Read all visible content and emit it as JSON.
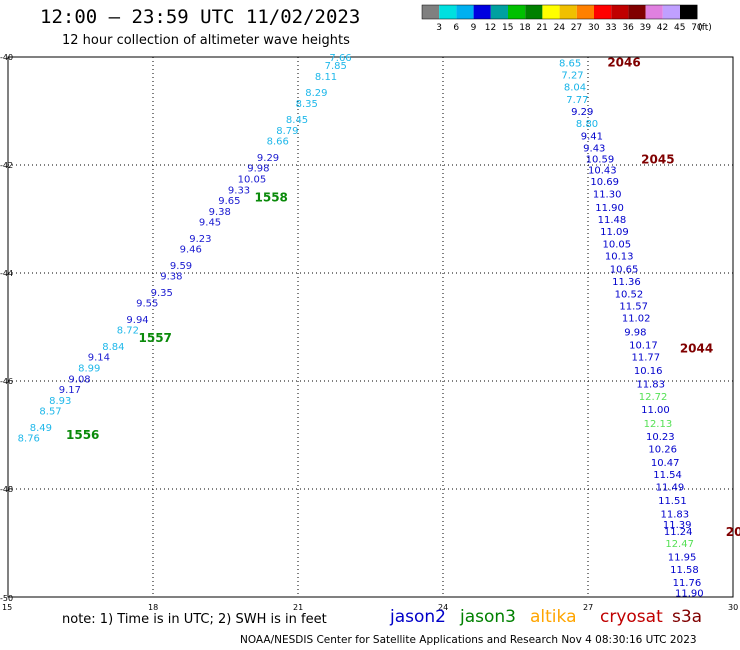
{
  "header": {
    "title": "12:00 – 23:59 UTC 11/02/2023",
    "subtitle": "12 hour collection of altimeter wave heights"
  },
  "colorbar": {
    "values": [
      "3",
      "6",
      "9",
      "12",
      "15",
      "18",
      "21",
      "24",
      "27",
      "30",
      "33",
      "36",
      "39",
      "42",
      "45",
      "70"
    ],
    "unit": "(ft)",
    "colors": [
      "#808080",
      "#00e0e0",
      "#00b0f0",
      "#0000e0",
      "#00a0a0",
      "#00c000",
      "#008000",
      "#ffff00",
      "#f0c000",
      "#ff8000",
      "#ff0000",
      "#c00000",
      "#800000",
      "#e080e0",
      "#c0a0ff",
      "#000000"
    ]
  },
  "note": "note: 1) Time is in UTC; 2) SWH is in feet",
  "satellites": [
    {
      "name": "jason2",
      "color": "#0000c8"
    },
    {
      "name": "jason3",
      "color": "#008000"
    },
    {
      "name": "altika",
      "color": "#ffa500"
    },
    {
      "name": "cryosat",
      "color": "#c00000"
    },
    {
      "name": "s3a",
      "color": "#800000"
    }
  ],
  "footer": "NOAA/NESDIS Center for Satellite Applications and Research   Nov  4 08:30:16 UTC 2023",
  "chart_data": {
    "type": "scatter",
    "x_axis": {
      "min": 15,
      "max": 30,
      "ticks": [
        15,
        18,
        21,
        24,
        27,
        30
      ]
    },
    "y_axis": {
      "min": -50,
      "max": -40,
      "ticks": [
        -40,
        -42,
        -44,
        -46,
        -48,
        -50
      ]
    },
    "grid": true,
    "tracks": [
      {
        "satellite": "jason3",
        "time_labels": [
          {
            "text": "1556",
            "x": 16.2,
            "y": -47.0
          },
          {
            "text": "1557",
            "x": 17.7,
            "y": -45.2
          },
          {
            "text": "1558",
            "x": 20.1,
            "y": -42.6
          }
        ],
        "points": [
          {
            "x": 15.2,
            "y": -47.05,
            "v": "8.76"
          },
          {
            "x": 15.45,
            "y": -46.85,
            "v": "8.49"
          },
          {
            "x": 15.65,
            "y": -46.55,
            "v": "8.57"
          },
          {
            "x": 15.85,
            "y": -46.35,
            "v": "8.93"
          },
          {
            "x": 16.05,
            "y": -46.15,
            "v": "9.17"
          },
          {
            "x": 16.25,
            "y": -45.95,
            "v": "9.08"
          },
          {
            "x": 16.45,
            "y": -45.75,
            "v": "8.99"
          },
          {
            "x": 16.65,
            "y": -45.55,
            "v": "9.14"
          },
          {
            "x": 16.95,
            "y": -45.35,
            "v": "8.84"
          },
          {
            "x": 17.25,
            "y": -45.05,
            "v": "8.72"
          },
          {
            "x": 17.45,
            "y": -44.85,
            "v": "9.94"
          },
          {
            "x": 17.65,
            "y": -44.55,
            "v": "9.55"
          },
          {
            "x": 17.95,
            "y": -44.35,
            "v": "9.35"
          },
          {
            "x": 18.15,
            "y": -44.05,
            "v": "9.38"
          },
          {
            "x": 18.35,
            "y": -43.85,
            "v": "9.59"
          },
          {
            "x": 18.55,
            "y": -43.55,
            "v": "9.46"
          },
          {
            "x": 18.75,
            "y": -43.35,
            "v": "9.23"
          },
          {
            "x": 18.95,
            "y": -43.05,
            "v": "9.45"
          },
          {
            "x": 19.15,
            "y": -42.85,
            "v": "9.38"
          },
          {
            "x": 19.35,
            "y": -42.65,
            "v": "9.65"
          },
          {
            "x": 19.55,
            "y": -42.45,
            "v": "9.33"
          },
          {
            "x": 19.75,
            "y": -42.25,
            "v": "10.05"
          },
          {
            "x": 19.95,
            "y": -42.05,
            "v": "9.98"
          },
          {
            "x": 20.15,
            "y": -41.85,
            "v": "9.29"
          },
          {
            "x": 20.35,
            "y": -41.55,
            "v": "8.66"
          },
          {
            "x": 20.55,
            "y": -41.35,
            "v": "8.79"
          },
          {
            "x": 20.75,
            "y": -41.15,
            "v": "8.45"
          },
          {
            "x": 20.95,
            "y": -40.85,
            "v": "8.35"
          },
          {
            "x": 21.15,
            "y": -40.65,
            "v": "8.29"
          },
          {
            "x": 21.35,
            "y": -40.35,
            "v": "8.11"
          },
          {
            "x": 21.55,
            "y": -40.15,
            "v": "7.85"
          },
          {
            "x": 21.65,
            "y": -40.0,
            "v": "7.66"
          }
        ]
      },
      {
        "satellite": "s3a",
        "time_labels": [
          {
            "text": "2046",
            "x": 27.4,
            "y": -40.1
          },
          {
            "text": "2045",
            "x": 28.1,
            "y": -41.9
          },
          {
            "text": "2044",
            "x": 28.9,
            "y": -45.4
          },
          {
            "text": "20",
            "x": 29.85,
            "y": -48.8
          }
        ],
        "points": [
          {
            "x": 26.4,
            "y": -40.1,
            "v": "8.65"
          },
          {
            "x": 26.45,
            "y": -40.32,
            "v": "7.27"
          },
          {
            "x": 26.5,
            "y": -40.55,
            "v": "8.04"
          },
          {
            "x": 26.55,
            "y": -40.78,
            "v": "7.77"
          },
          {
            "x": 26.65,
            "y": -41.0,
            "v": "9.29"
          },
          {
            "x": 26.75,
            "y": -41.22,
            "v": "8.80"
          },
          {
            "x": 26.85,
            "y": -41.45,
            "v": "9.41"
          },
          {
            "x": 26.9,
            "y": -41.68,
            "v": "9.43"
          },
          {
            "x": 26.95,
            "y": -41.88,
            "v": "10.59"
          },
          {
            "x": 27.0,
            "y": -42.08,
            "v": "10.43"
          },
          {
            "x": 27.05,
            "y": -42.3,
            "v": "10.69"
          },
          {
            "x": 27.1,
            "y": -42.53,
            "v": "11.30"
          },
          {
            "x": 27.15,
            "y": -42.78,
            "v": "11.90"
          },
          {
            "x": 27.2,
            "y": -43.0,
            "v": "11.48"
          },
          {
            "x": 27.25,
            "y": -43.22,
            "v": "11.09"
          },
          {
            "x": 27.3,
            "y": -43.45,
            "v": "10.05"
          },
          {
            "x": 27.35,
            "y": -43.68,
            "v": "10.13"
          },
          {
            "x": 27.45,
            "y": -43.92,
            "v": "10.65"
          },
          {
            "x": 27.5,
            "y": -44.15,
            "v": "11.36"
          },
          {
            "x": 27.55,
            "y": -44.38,
            "v": "10.52"
          },
          {
            "x": 27.65,
            "y": -44.6,
            "v": "11.57"
          },
          {
            "x": 27.7,
            "y": -44.82,
            "v": "11.02"
          },
          {
            "x": 27.75,
            "y": -45.08,
            "v": "9.98"
          },
          {
            "x": 27.85,
            "y": -45.32,
            "v": "10.17"
          },
          {
            "x": 27.9,
            "y": -45.55,
            "v": "11.77"
          },
          {
            "x": 27.95,
            "y": -45.8,
            "v": "10.16"
          },
          {
            "x": 28.0,
            "y": -46.05,
            "v": "11.83"
          },
          {
            "x": 28.05,
            "y": -46.28,
            "v": "12.72"
          },
          {
            "x": 28.1,
            "y": -46.52,
            "v": "11.00"
          },
          {
            "x": 28.15,
            "y": -46.78,
            "v": "12.13"
          },
          {
            "x": 28.2,
            "y": -47.02,
            "v": "10.23"
          },
          {
            "x": 28.25,
            "y": -47.25,
            "v": "10.26"
          },
          {
            "x": 28.3,
            "y": -47.5,
            "v": "10.47"
          },
          {
            "x": 28.35,
            "y": -47.72,
            "v": "11.54"
          },
          {
            "x": 28.4,
            "y": -47.95,
            "v": "11.49"
          },
          {
            "x": 28.45,
            "y": -48.2,
            "v": "11.51"
          },
          {
            "x": 28.5,
            "y": -48.45,
            "v": "11.83"
          },
          {
            "x": 28.55,
            "y": -48.65,
            "v": "11.39"
          },
          {
            "x": 28.57,
            "y": -48.78,
            "v": "11.24"
          },
          {
            "x": 28.6,
            "y": -49.0,
            "v": "12.47"
          },
          {
            "x": 28.65,
            "y": -49.25,
            "v": "11.95"
          },
          {
            "x": 28.7,
            "y": -49.48,
            "v": "11.58"
          },
          {
            "x": 28.75,
            "y": -49.72,
            "v": "11.76"
          },
          {
            "x": 28.8,
            "y": -49.92,
            "v": "11.90"
          }
        ]
      }
    ]
  }
}
